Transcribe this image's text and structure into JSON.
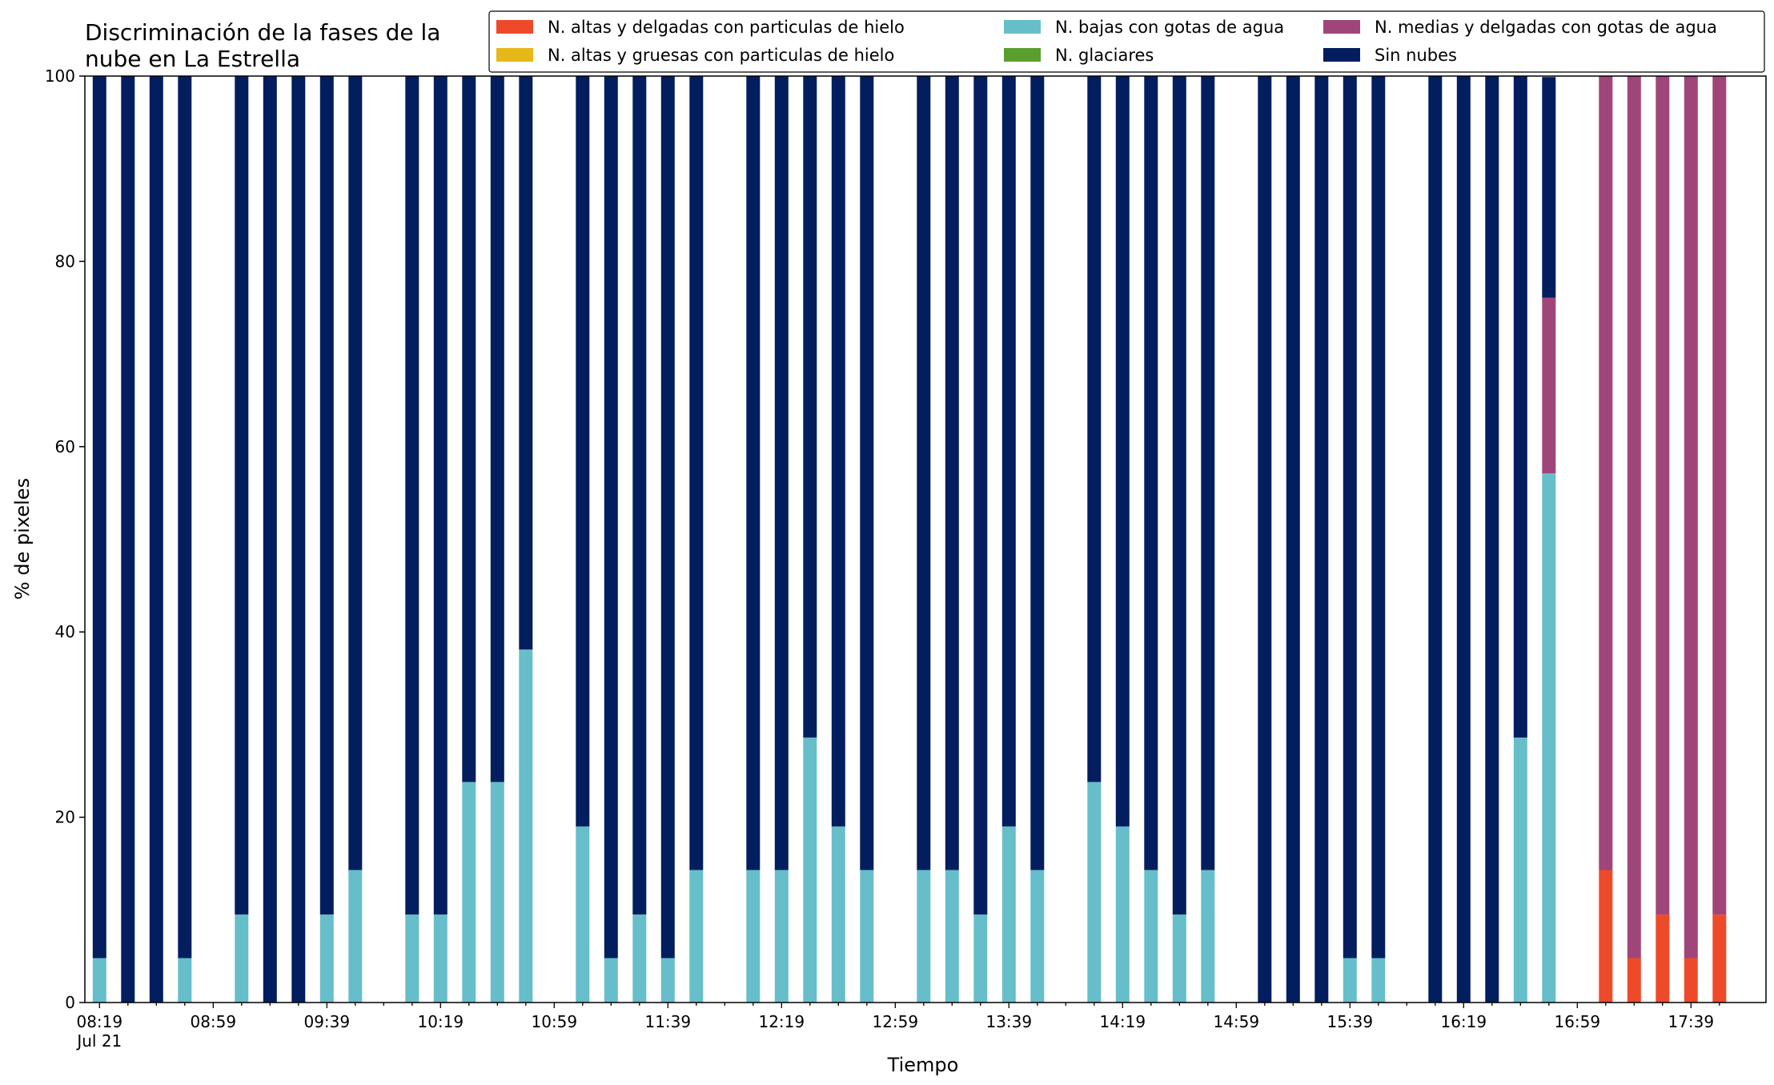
{
  "chart_data": {
    "type": "bar",
    "stacked": true,
    "title": "Discriminación de la fases de la\nnube en La Estrella",
    "xlabel": "Tiempo",
    "ylabel": "% de pixeles",
    "ylim": [
      0,
      100
    ],
    "yticks": [
      0,
      20,
      40,
      60,
      80,
      100
    ],
    "grid": false,
    "legend_position": "top",
    "x_start": "08:19",
    "x_step_minutes": 10,
    "x_date_label": "Jul 21",
    "x_tick_labels": [
      "08:19",
      "08:59",
      "09:39",
      "10:19",
      "10:59",
      "11:39",
      "12:19",
      "12:59",
      "13:39",
      "14:19",
      "14:59",
      "15:39",
      "16:19",
      "16:59",
      "17:39"
    ],
    "categories": [
      "08:19",
      "08:29",
      "08:39",
      "08:49",
      "08:59",
      "09:09",
      "09:19",
      "09:29",
      "09:39",
      "09:49",
      "09:59",
      "10:09",
      "10:19",
      "10:29",
      "10:39",
      "10:49",
      "10:59",
      "11:09",
      "11:19",
      "11:29",
      "11:39",
      "11:49",
      "11:59",
      "12:09",
      "12:19",
      "12:29",
      "12:39",
      "12:49",
      "12:59",
      "13:09",
      "13:19",
      "13:29",
      "13:39",
      "13:49",
      "13:59",
      "14:09",
      "14:19",
      "14:29",
      "14:39",
      "14:49",
      "14:59",
      "15:09",
      "15:19",
      "15:29",
      "15:39",
      "15:49",
      "15:59",
      "16:09",
      "16:19",
      "16:29",
      "16:39",
      "16:49",
      "16:59",
      "17:09",
      "17:19",
      "17:29",
      "17:39",
      "17:49"
    ],
    "series": [
      {
        "name": "N. altas y delgadas con particulas de hielo",
        "color": "#EE4A2A",
        "values": [
          0,
          0,
          0,
          0,
          null,
          0,
          0,
          0,
          0,
          0,
          null,
          0,
          0,
          0,
          0,
          0,
          null,
          0,
          0,
          0,
          0,
          0,
          null,
          0,
          0,
          0,
          0,
          0,
          null,
          0,
          0,
          0,
          0,
          0,
          null,
          0,
          0,
          0,
          0,
          0,
          null,
          0,
          0,
          0,
          0,
          0,
          null,
          0,
          0,
          0,
          0,
          0,
          null,
          14.3,
          4.8,
          9.5,
          4.8,
          9.5
        ]
      },
      {
        "name": "N. altas y gruesas con particulas de hielo",
        "color": "#E6B819",
        "values": [
          0,
          0,
          0,
          0,
          null,
          0,
          0,
          0,
          0,
          0,
          null,
          0,
          0,
          0,
          0,
          0,
          null,
          0,
          0,
          0,
          0,
          0,
          null,
          0,
          0,
          0,
          0,
          0,
          null,
          0,
          0,
          0,
          0,
          0,
          null,
          0,
          0,
          0,
          0,
          0,
          null,
          0,
          0,
          0,
          0,
          0,
          null,
          0,
          0,
          0,
          0,
          0,
          null,
          0,
          0,
          0,
          0,
          0
        ]
      },
      {
        "name": "N. bajas con gotas de agua",
        "color": "#66BECA",
        "values": [
          4.8,
          0,
          0,
          4.8,
          null,
          9.5,
          0,
          0,
          9.5,
          14.3,
          null,
          9.5,
          9.5,
          23.8,
          23.8,
          38.1,
          null,
          19.0,
          4.8,
          9.5,
          4.8,
          14.3,
          null,
          14.3,
          14.3,
          28.6,
          19.0,
          14.3,
          null,
          14.3,
          14.3,
          9.5,
          19.0,
          14.3,
          null,
          23.8,
          19.0,
          14.3,
          9.5,
          14.3,
          null,
          0,
          0,
          0,
          4.8,
          4.8,
          null,
          0,
          0,
          0,
          28.6,
          57.1,
          null,
          0,
          0,
          0,
          0,
          0
        ]
      },
      {
        "name": "N. glaciares",
        "color": "#5A9E2E",
        "values": [
          0,
          0,
          0,
          0,
          null,
          0,
          0,
          0,
          0,
          0,
          null,
          0,
          0,
          0,
          0,
          0,
          null,
          0,
          0,
          0,
          0,
          0,
          null,
          0,
          0,
          0,
          0,
          0,
          null,
          0,
          0,
          0,
          0,
          0,
          null,
          0,
          0,
          0,
          0,
          0,
          null,
          0,
          0,
          0,
          0,
          0,
          null,
          0,
          0,
          0,
          0,
          0,
          null,
          0,
          0,
          0,
          0,
          0
        ]
      },
      {
        "name": "N. medias y delgadas con gotas de agua",
        "color": "#A0457A",
        "values": [
          0,
          0,
          0,
          0,
          null,
          0,
          0,
          0,
          0,
          0,
          null,
          0,
          0,
          0,
          0,
          0,
          null,
          0,
          0,
          0,
          0,
          0,
          null,
          0,
          0,
          0,
          0,
          0,
          null,
          0,
          0,
          0,
          0,
          0,
          null,
          0,
          0,
          0,
          0,
          0,
          null,
          0,
          0,
          0,
          0,
          0,
          null,
          0,
          0,
          0,
          0,
          19.0,
          null,
          85.7,
          95.2,
          90.5,
          95.2,
          90.5
        ]
      },
      {
        "name": "Sin nubes",
        "color": "#021E5F",
        "values": [
          95.2,
          100,
          100,
          95.2,
          null,
          90.5,
          100,
          100,
          90.5,
          85.7,
          null,
          90.5,
          90.5,
          76.2,
          76.2,
          61.9,
          null,
          81.0,
          95.2,
          90.5,
          95.2,
          85.7,
          null,
          85.7,
          85.7,
          71.4,
          81.0,
          85.7,
          null,
          85.7,
          85.7,
          90.5,
          81.0,
          85.7,
          null,
          76.2,
          81.0,
          85.7,
          90.5,
          85.7,
          null,
          100,
          100,
          100,
          95.2,
          95.2,
          null,
          100,
          100,
          100,
          71.4,
          23.8,
          null,
          0,
          0,
          0,
          0,
          0
        ]
      }
    ]
  }
}
